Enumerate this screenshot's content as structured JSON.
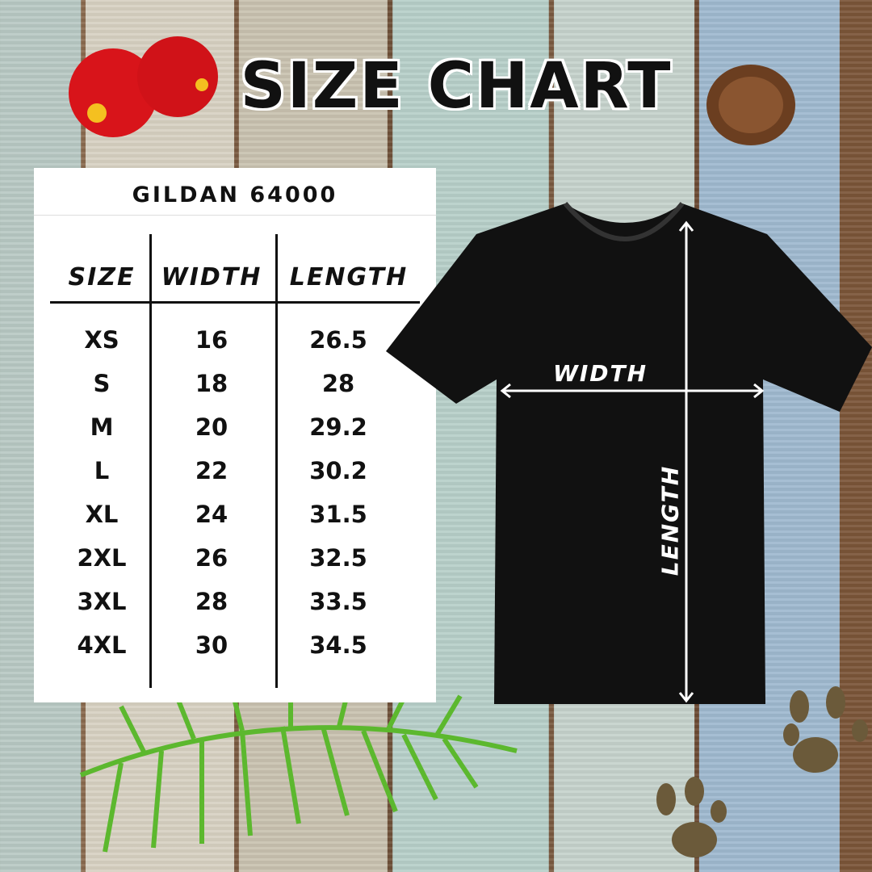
{
  "title": "SIZE CHART",
  "brand": "GILDAN 64000",
  "table": {
    "headers": [
      "SIZE",
      "WIDTH",
      "LENGTH"
    ],
    "rows": [
      [
        "XS",
        "16",
        "26.5"
      ],
      [
        "S",
        "18",
        "28"
      ],
      [
        "M",
        "20",
        "29.2"
      ],
      [
        "L",
        "22",
        "30.2"
      ],
      [
        "XL",
        "24",
        "31.5"
      ],
      [
        "2XL",
        "26",
        "32.5"
      ],
      [
        "3XL",
        "28",
        "33.5"
      ],
      [
        "4XL",
        "30",
        "34.5"
      ]
    ]
  },
  "diagram": {
    "width_label": "WIDTH",
    "length_label": "LENGTH",
    "shirt_color": "#111111"
  },
  "decorations": [
    "hibiscus-flower",
    "pinecone",
    "fern-leaf",
    "paw-prints"
  ]
}
